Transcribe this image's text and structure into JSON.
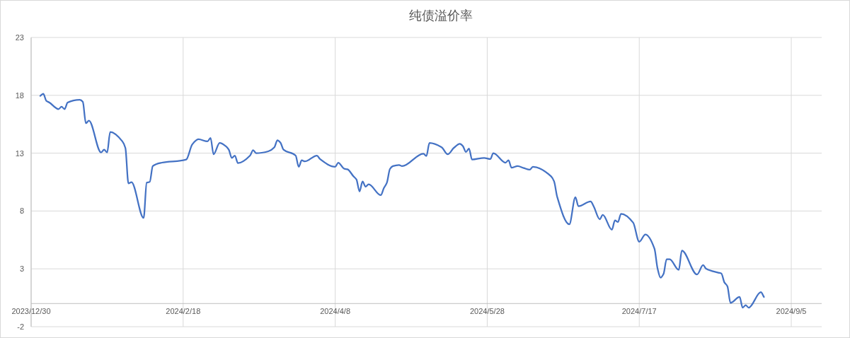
{
  "chart_data": {
    "type": "line",
    "title": "纯债溢价率",
    "x": [
      "2024-01-02",
      "2024-01-03",
      "2024-01-04",
      "2024-01-05",
      "2024-01-08",
      "2024-01-09",
      "2024-01-10",
      "2024-01-11",
      "2024-01-15",
      "2024-01-16",
      "2024-01-17",
      "2024-01-18",
      "2024-01-22",
      "2024-01-23",
      "2024-01-24",
      "2024-01-25",
      "2024-01-29",
      "2024-01-30",
      "2024-01-31",
      "2024-02-01",
      "2024-02-05",
      "2024-02-06",
      "2024-02-07",
      "2024-02-08",
      "2024-02-11",
      "2024-02-19",
      "2024-02-21",
      "2024-02-23",
      "2024-02-26",
      "2024-02-27",
      "2024-02-28",
      "2024-03-01",
      "2024-03-03",
      "2024-03-04",
      "2024-03-05",
      "2024-03-06",
      "2024-03-07",
      "2024-03-11",
      "2024-03-12",
      "2024-03-13",
      "2024-03-17",
      "2024-03-19",
      "2024-03-20",
      "2024-03-21",
      "2024-03-22",
      "2024-03-26",
      "2024-03-27",
      "2024-03-28",
      "2024-03-29",
      "2024-04-02",
      "2024-04-03",
      "2024-04-08",
      "2024-04-09",
      "2024-04-11",
      "2024-04-12",
      "2024-04-14",
      "2024-04-15",
      "2024-04-16",
      "2024-04-17",
      "2024-04-18",
      "2024-04-19",
      "2024-04-23",
      "2024-04-24",
      "2024-04-25",
      "2024-04-26",
      "2024-04-27",
      "2024-04-29",
      "2024-04-30",
      "2024-05-07",
      "2024-05-08",
      "2024-05-09",
      "2024-05-13",
      "2024-05-15",
      "2024-05-17",
      "2024-05-19",
      "2024-05-20",
      "2024-05-21",
      "2024-05-22",
      "2024-05-23",
      "2024-05-27",
      "2024-05-29",
      "2024-05-30",
      "2024-06-03",
      "2024-06-04",
      "2024-06-05",
      "2024-06-07",
      "2024-06-09",
      "2024-06-11",
      "2024-06-12",
      "2024-06-18",
      "2024-06-19",
      "2024-06-20",
      "2024-06-24",
      "2024-06-26",
      "2024-06-27",
      "2024-07-01",
      "2024-07-02",
      "2024-07-04",
      "2024-07-05",
      "2024-07-08",
      "2024-07-09",
      "2024-07-10",
      "2024-07-11",
      "2024-07-15",
      "2024-07-17",
      "2024-07-19",
      "2024-07-22",
      "2024-07-23",
      "2024-07-24",
      "2024-07-25",
      "2024-07-26",
      "2024-07-27",
      "2024-07-30",
      "2024-07-31",
      "2024-08-05",
      "2024-08-07",
      "2024-08-08",
      "2024-08-12",
      "2024-08-13",
      "2024-08-14",
      "2024-08-15",
      "2024-08-16",
      "2024-08-19",
      "2024-08-20",
      "2024-08-21",
      "2024-08-22",
      "2024-08-26",
      "2024-08-27"
    ],
    "series": [
      {
        "color": "#4472c4",
        "values": [
          17.95,
          18.13,
          17.52,
          17.38,
          16.81,
          17.01,
          16.81,
          17.38,
          17.62,
          17.44,
          15.59,
          15.81,
          13.06,
          13.3,
          13.06,
          14.83,
          14.02,
          13.45,
          10.39,
          10.49,
          7.4,
          10.45,
          10.51,
          11.88,
          12.18,
          12.45,
          13.76,
          14.2,
          14.02,
          14.32,
          12.9,
          13.88,
          13.61,
          13.3,
          12.59,
          12.79,
          12.14,
          12.79,
          13.26,
          13.0,
          13.16,
          13.51,
          14.12,
          13.91,
          13.3,
          12.79,
          11.82,
          12.38,
          12.29,
          12.79,
          12.49,
          11.82,
          12.18,
          11.65,
          11.61,
          11.0,
          10.72,
          9.69,
          10.55,
          10.1,
          10.31,
          9.37,
          9.98,
          10.45,
          11.63,
          11.88,
          11.98,
          11.88,
          12.96,
          12.75,
          13.88,
          13.51,
          12.9,
          13.45,
          13.81,
          13.61,
          13.1,
          13.4,
          12.45,
          12.59,
          12.49,
          13.0,
          12.18,
          12.38,
          11.74,
          11.88,
          11.71,
          11.57,
          11.82,
          11.0,
          10.55,
          9.23,
          6.85,
          9.19,
          8.41,
          8.82,
          8.41,
          7.29,
          7.66,
          6.38,
          7.19,
          7.05,
          7.76,
          6.99,
          5.34,
          5.97,
          4.74,
          3.06,
          2.24,
          2.57,
          3.83,
          3.83,
          2.91,
          4.58,
          2.51,
          3.32,
          3.01,
          2.67,
          2.6,
          1.83,
          1.49,
          0.06,
          0.57,
          -0.35,
          -0.15,
          -0.35,
          0.98,
          0.57
        ]
      }
    ],
    "xlim": [
      "2023-12-30",
      "2024-09-15"
    ],
    "xticks": [
      {
        "value": "2023-12-30",
        "label": "2023/12/30"
      },
      {
        "value": "2024-02-18",
        "label": "2024/2/18"
      },
      {
        "value": "2024-04-08",
        "label": "2024/4/8"
      },
      {
        "value": "2024-05-28",
        "label": "2024/5/28"
      },
      {
        "value": "2024-07-17",
        "label": "2024/7/17"
      },
      {
        "value": "2024-09-05",
        "label": "2024/9/5"
      }
    ],
    "ylim": [
      -2,
      23
    ],
    "yticks": [
      -2,
      3,
      8,
      13,
      18,
      23
    ],
    "grid": true,
    "marker": "none",
    "line_style": "solid"
  }
}
